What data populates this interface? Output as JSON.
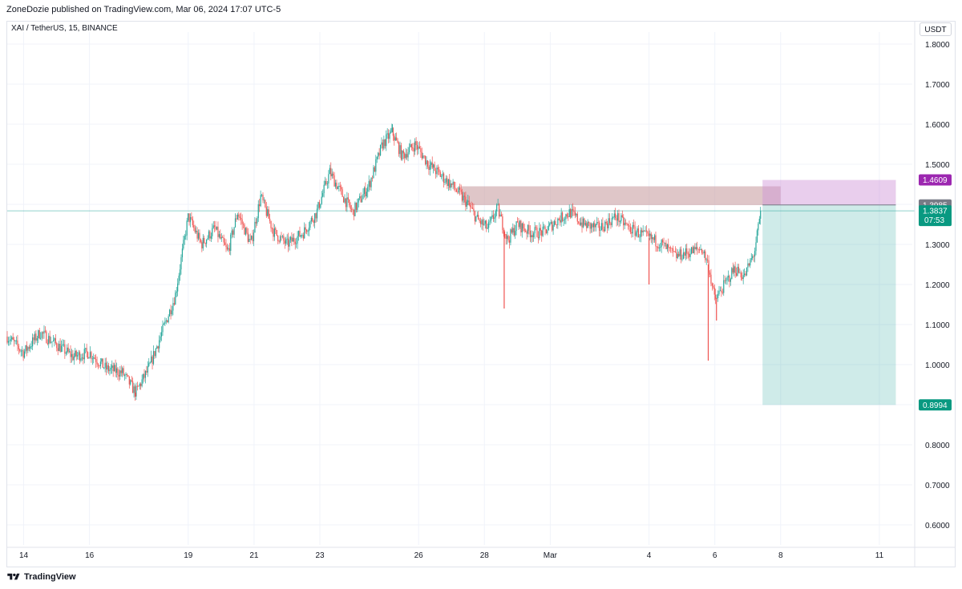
{
  "header": {
    "publisher": "ZoneDozie published on TradingView.com, Mar 06, 2024 17:07 UTC-5"
  },
  "symbol": "XAI / TetherUS, 15, BINANCE",
  "currency_button": "USDT",
  "footer": {
    "brand": "TradingView",
    "logo_icon": "tradingview-logo-icon"
  },
  "colors": {
    "up": "#26a69a",
    "down": "#ef5350",
    "grid": "#f0f3fa",
    "zone_supply": "#c9a0a3",
    "profit_zone": "#26a69a",
    "loss_zone": "#ce93d8",
    "label_purple": "#9c27b0",
    "label_gray": "#787b86",
    "label_green": "#089981"
  },
  "chart_data": {
    "type": "candlestick",
    "interval": "15",
    "y_axis": {
      "ticks": [
        "1.8000",
        "1.7000",
        "1.6000",
        "1.5000",
        "1.4000",
        "1.3000",
        "1.2000",
        "1.1000",
        "1.0000",
        "0.9000",
        "0.8000",
        "0.7000",
        "0.6000"
      ],
      "tick_values": [
        1.8,
        1.7,
        1.6,
        1.5,
        1.4,
        1.3,
        1.2,
        1.1,
        1.0,
        0.9,
        0.8,
        0.7,
        0.6
      ],
      "range": [
        0.55,
        1.83
      ]
    },
    "x_axis": {
      "labels": [
        "14",
        "16",
        "19",
        "21",
        "23",
        "26",
        "28",
        "Mar",
        "4",
        "6",
        "8",
        "11"
      ],
      "label_days": [
        14,
        16,
        19,
        21,
        23,
        26,
        28,
        30,
        33,
        35,
        37,
        40
      ],
      "range_days": [
        13.5,
        41
      ]
    },
    "price_path": [
      [
        13.5,
        1.07
      ],
      [
        14.0,
        1.03
      ],
      [
        14.5,
        1.08
      ],
      [
        15.0,
        1.05
      ],
      [
        15.5,
        1.02
      ],
      [
        16.0,
        1.03
      ],
      [
        16.5,
        0.99
      ],
      [
        17.0,
        0.98
      ],
      [
        17.4,
        0.93
      ],
      [
        17.8,
        0.99
      ],
      [
        18.2,
        1.08
      ],
      [
        18.6,
        1.17
      ],
      [
        19.0,
        1.37
      ],
      [
        19.4,
        1.3
      ],
      [
        19.8,
        1.34
      ],
      [
        20.2,
        1.28
      ],
      [
        20.5,
        1.38
      ],
      [
        20.9,
        1.3
      ],
      [
        21.2,
        1.42
      ],
      [
        21.6,
        1.33
      ],
      [
        22.0,
        1.3
      ],
      [
        22.5,
        1.33
      ],
      [
        22.9,
        1.38
      ],
      [
        23.3,
        1.48
      ],
      [
        23.7,
        1.42
      ],
      [
        24.0,
        1.38
      ],
      [
        24.5,
        1.45
      ],
      [
        24.9,
        1.55
      ],
      [
        25.2,
        1.58
      ],
      [
        25.5,
        1.52
      ],
      [
        25.9,
        1.55
      ],
      [
        26.3,
        1.5
      ],
      [
        26.7,
        1.47
      ],
      [
        27.1,
        1.44
      ],
      [
        27.5,
        1.4
      ],
      [
        27.8,
        1.36
      ],
      [
        28.1,
        1.34
      ],
      [
        28.4,
        1.39
      ],
      [
        28.7,
        1.31
      ],
      [
        29.0,
        1.35
      ],
      [
        29.4,
        1.33
      ],
      [
        29.8,
        1.33
      ],
      [
        30.2,
        1.36
      ],
      [
        30.6,
        1.38
      ],
      [
        31.0,
        1.35
      ],
      [
        31.5,
        1.34
      ],
      [
        32.0,
        1.37
      ],
      [
        32.4,
        1.34
      ],
      [
        32.9,
        1.32
      ],
      [
        33.4,
        1.3
      ],
      [
        33.8,
        1.27
      ],
      [
        34.2,
        1.28
      ],
      [
        34.6,
        1.29
      ],
      [
        34.8,
        1.25
      ],
      [
        35.0,
        1.16
      ],
      [
        35.3,
        1.2
      ],
      [
        35.6,
        1.24
      ],
      [
        35.9,
        1.22
      ],
      [
        36.2,
        1.28
      ],
      [
        36.4,
        1.38
      ]
    ],
    "wicks": [
      {
        "day": 17.4,
        "low": 0.92
      },
      {
        "day": 28.6,
        "low": 1.14
      },
      {
        "day": 33.0,
        "low": 1.2
      },
      {
        "day": 34.8,
        "low": 1.01
      },
      {
        "day": 35.05,
        "low": 1.11
      },
      {
        "day": 25.2,
        "high": 1.6
      }
    ],
    "zones": {
      "supply_zone": {
        "top": 1.445,
        "bottom": 1.398,
        "start_day": 27.3,
        "end_day": 37.0
      },
      "position": {
        "entry": 1.3985,
        "stop": 1.4609,
        "target": 0.8994,
        "start_day": 36.45,
        "end_day": 40.5
      }
    },
    "last_price": 1.3837,
    "price_labels": [
      {
        "name": "stop",
        "value": "1.4609"
      },
      {
        "name": "entry",
        "value": "1.3985"
      },
      {
        "name": "last",
        "value": "1.3837",
        "countdown": "07:53"
      },
      {
        "name": "target",
        "value": "0.8994"
      }
    ]
  }
}
